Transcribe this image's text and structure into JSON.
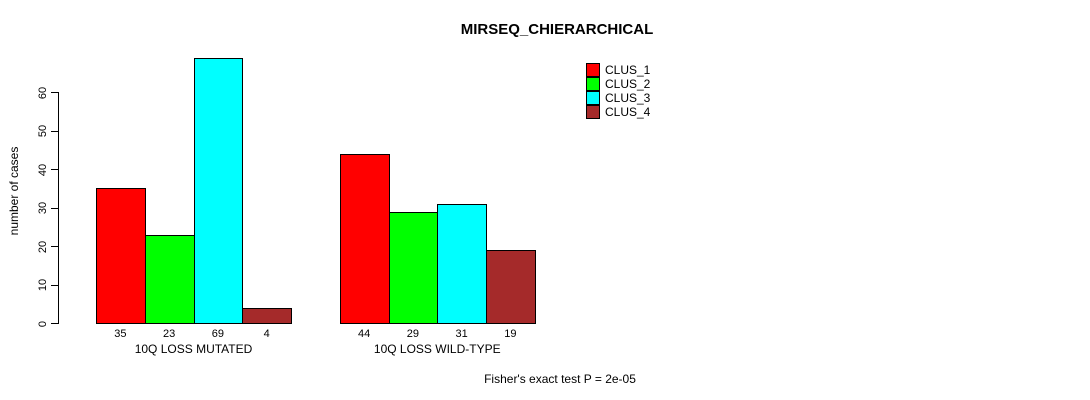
{
  "title": "MIRSEQ_CHIERARCHICAL",
  "chart_data": {
    "type": "bar",
    "title": "MIRSEQ_CHIERARCHICAL",
    "xlabel": "",
    "ylabel": "number of cases",
    "categories": [
      "10Q LOSS MUTATED",
      "10Q LOSS WILD-TYPE"
    ],
    "series": [
      {
        "name": "CLUS_1",
        "color": "#FF0000",
        "values": [
          35,
          44
        ]
      },
      {
        "name": "CLUS_2",
        "color": "#00FF00",
        "values": [
          23,
          29
        ]
      },
      {
        "name": "CLUS_3",
        "color": "#00FFFF",
        "values": [
          69,
          31
        ]
      },
      {
        "name": "CLUS_4",
        "color": "#A52A2A",
        "values": [
          4,
          19
        ]
      }
    ],
    "bar_value_labels": [
      [
        "35",
        "23",
        "69",
        "4"
      ],
      [
        "44",
        "29",
        "31",
        "19"
      ]
    ],
    "yticks": [
      0,
      10,
      20,
      30,
      40,
      50,
      60
    ],
    "ylim": [
      0,
      69
    ],
    "grid": false,
    "legend_position": "top-right",
    "annotation": "Fisher's exact test P = 2e-05"
  }
}
